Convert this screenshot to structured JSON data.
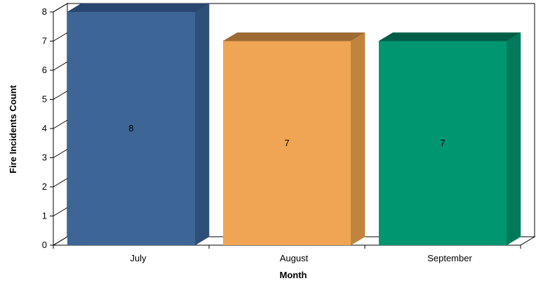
{
  "chart_data": {
    "type": "bar",
    "categories": [
      "July",
      "August",
      "September"
    ],
    "values": [
      8,
      7,
      7
    ],
    "xlabel": "Month",
    "ylabel": "Fire Incidents Count",
    "ylim": [
      0,
      8
    ],
    "yticks": [
      0,
      1,
      2,
      3,
      4,
      5,
      6,
      7,
      8
    ],
    "grid": false,
    "legend": "none",
    "bar_colors": [
      {
        "front": "#3D6697",
        "side": "#2E4F78",
        "top": "#284670"
      },
      {
        "front": "#EFA553",
        "side": "#C0843F",
        "top": "#9C6A32"
      },
      {
        "front": "#009670",
        "side": "#007A5B",
        "top": "#005E46"
      }
    ]
  }
}
